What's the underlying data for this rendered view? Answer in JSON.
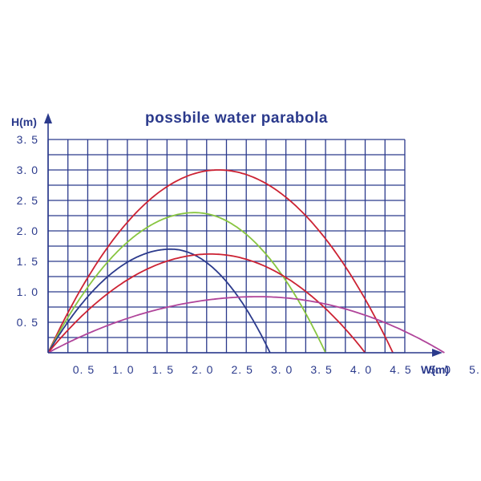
{
  "chart_data": {
    "type": "line",
    "title": "possbile water parabola",
    "xlabel": "W(m)",
    "ylabel": "H(m)",
    "xlim": [
      0,
      5.5
    ],
    "ylim": [
      0,
      3.5
    ],
    "grid": true,
    "x_tick_labels": [
      "0. 5",
      "1. 0",
      "1. 5",
      "2. 0",
      "2. 5",
      "3. 0",
      "3. 5",
      "4. 0",
      "4. 5",
      "5. 0",
      "5. 5"
    ],
    "y_tick_labels": [
      "0. 5",
      "1. 0",
      "1. 5",
      "2. 0",
      "2. 5",
      "3. 0",
      "3. 5"
    ],
    "series": [
      {
        "color": "#cc2233",
        "apex_x": 2.15,
        "apex_y": 3.0,
        "end_x": 4.35
      },
      {
        "color": "#88c540",
        "apex_x": 1.85,
        "apex_y": 2.3,
        "end_x": 3.5
      },
      {
        "color": "#2b3a8c",
        "apex_x": 1.55,
        "apex_y": 1.7,
        "end_x": 2.8
      },
      {
        "color": "#cc2233",
        "apex_x": 2.05,
        "apex_y": 1.62,
        "end_x": 4.0
      },
      {
        "color": "#b0449a",
        "apex_x": 2.65,
        "apex_y": 0.92,
        "end_x": 5.0
      }
    ]
  }
}
